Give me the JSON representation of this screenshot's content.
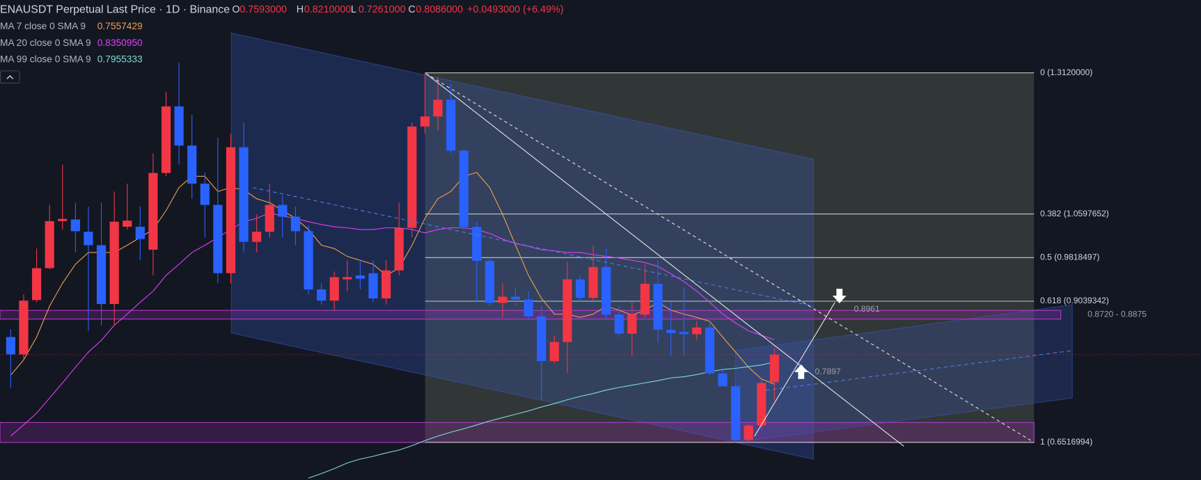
{
  "header": {
    "symbol": "ENAUSDT Perpetual Last Price · 1D · Binance",
    "ohlc_labels": [
      "O",
      "H",
      "L",
      "C"
    ],
    "ohlc_values": [
      "0.7593000",
      "0.8210000",
      "0.7261000",
      "0.8086000"
    ],
    "change": "+0.0493000 (+6.49%)"
  },
  "chart_data": {
    "type": "candlestick",
    "up_color": "#f23645",
    "down_color": "#2962ff",
    "ylim": [
      0.5847,
      1.4419
    ],
    "open": [
      0.84,
      0.809,
      0.906,
      0.963,
      1.047,
      1.05,
      1.028,
      1.004,
      0.899,
      1.037,
      1.037,
      0.996,
      1.133,
      1.252,
      1.182,
      1.114,
      1.076,
      0.954,
      1.179,
      1.01,
      1.028,
      1.076,
      1.055,
      1.029,
      0.925,
      0.905,
      0.943,
      0.95,
      0.954,
      0.909,
      0.959,
      1.035,
      1.216,
      1.234,
      1.264,
      1.173,
      1.037,
      0.976,
      0.901,
      0.912,
      0.907,
      0.877,
      0.797,
      0.831,
      0.943,
      0.91,
      0.965,
      0.88,
      0.846,
      0.88,
      0.935,
      0.853,
      0.849,
      0.845,
      0.857,
      0.775,
      0.752,
      0.656,
      0.682,
      0.7593
    ],
    "high": [
      0.854,
      0.916,
      0.998,
      1.076,
      1.148,
      1.08,
      1.073,
      1.08,
      1.1,
      1.114,
      1.073,
      1.168,
      1.278,
      1.33,
      1.237,
      1.134,
      1.196,
      1.203,
      1.223,
      1.059,
      1.114,
      1.093,
      1.073,
      1.039,
      0.936,
      0.957,
      0.977,
      0.977,
      0.977,
      0.977,
      1.08,
      1.223,
      1.312,
      1.305,
      1.292,
      1.175,
      1.046,
      0.984,
      0.936,
      0.929,
      0.922,
      0.895,
      0.843,
      0.974,
      0.95,
      1.004,
      0.998,
      0.895,
      0.902,
      0.97,
      0.977,
      0.902,
      0.929,
      0.868,
      0.868,
      0.786,
      0.758,
      0.686,
      0.765,
      0.821
    ],
    "low": [
      0.749,
      0.799,
      0.902,
      0.961,
      1.032,
      0.991,
      0.851,
      0.861,
      0.861,
      1.032,
      0.977,
      0.95,
      1.127,
      1.148,
      1.087,
      1.018,
      0.936,
      0.936,
      0.991,
      0.991,
      1.018,
      1.018,
      1.004,
      0.916,
      0.898,
      0.888,
      0.922,
      0.925,
      0.902,
      0.898,
      0.95,
      1.018,
      1.203,
      1.209,
      1.168,
      1.032,
      0.902,
      0.895,
      0.875,
      0.895,
      0.87,
      0.727,
      0.793,
      0.776,
      0.902,
      0.902,
      0.87,
      0.84,
      0.806,
      0.875,
      0.83,
      0.806,
      0.806,
      0.834,
      0.772,
      0.752,
      0.6517,
      0.652,
      0.676,
      0.7261
    ],
    "close": [
      0.809,
      0.905,
      0.963,
      1.047,
      1.051,
      1.029,
      1.004,
      0.899,
      1.046,
      1.048,
      1.015,
      1.133,
      1.252,
      1.182,
      1.114,
      1.076,
      0.954,
      1.179,
      1.01,
      1.028,
      1.076,
      1.055,
      1.029,
      0.925,
      0.905,
      0.947,
      0.947,
      0.944,
      0.909,
      0.959,
      1.035,
      1.216,
      1.234,
      1.264,
      1.173,
      1.037,
      0.976,
      0.901,
      0.912,
      0.907,
      0.877,
      0.797,
      0.831,
      0.943,
      0.91,
      0.965,
      0.88,
      0.846,
      0.88,
      0.935,
      0.853,
      0.847,
      0.845,
      0.857,
      0.775,
      0.752,
      0.656,
      0.682,
      0.758,
      0.8086
    ],
    "series": [
      {
        "name": "MA 7 close 0 SMA 9",
        "color": "#f0a04b",
        "values": [
          0.772,
          0.799,
          0.84,
          0.895,
          0.936,
          0.97,
          0.991,
          0.991,
          0.991,
          1.004,
          1.018,
          1.032,
          1.066,
          1.107,
          1.127,
          1.127,
          1.1,
          1.107,
          1.103,
          1.087,
          1.08,
          1.066,
          1.052,
          1.032,
          1.004,
          0.998,
          0.984,
          0.977,
          0.97,
          0.95,
          0.963,
          1.004,
          1.052,
          1.087,
          1.1,
          1.127,
          1.134,
          1.107,
          1.059,
          1.004,
          0.95,
          0.909,
          0.881,
          0.881,
          0.875,
          0.881,
          0.895,
          0.888,
          0.879,
          0.888,
          0.902,
          0.888,
          0.881,
          0.875,
          0.868,
          0.84,
          0.813,
          0.786,
          0.765,
          0.7557429
        ]
      },
      {
        "name": "MA 20 close 0 SMA 9",
        "color": "#e040fb",
        "values": [
          0.663,
          0.683,
          0.704,
          0.731,
          0.758,
          0.786,
          0.813,
          0.834,
          0.861,
          0.881,
          0.902,
          0.922,
          0.95,
          0.97,
          0.991,
          1.004,
          1.018,
          1.032,
          1.046,
          1.052,
          1.062,
          1.056,
          1.052,
          1.046,
          1.041,
          1.037,
          1.035,
          1.032,
          1.032,
          1.035,
          1.035,
          1.032,
          1.026,
          1.032,
          1.035,
          1.035,
          1.032,
          1.025,
          1.015,
          1.007,
          1.002,
          0.996,
          0.994,
          0.991,
          0.991,
          0.987,
          0.984,
          0.981,
          0.977,
          0.973,
          0.966,
          0.953,
          0.939,
          0.922,
          0.902,
          0.881,
          0.865,
          0.851,
          0.843,
          0.835095
        ],
        "value_labels": [
          null,
          null,
          null,
          null,
          null,
          null,
          null,
          null,
          null,
          null,
          null,
          null,
          null,
          null,
          null,
          null,
          null,
          null,
          null,
          null,
          null,
          null,
          null,
          null,
          null,
          null,
          null,
          null,
          null,
          null,
          null,
          null,
          null,
          null,
          null,
          null,
          null,
          null,
          null,
          null,
          null,
          null,
          null,
          null,
          null,
          null,
          null,
          null,
          null,
          null,
          null,
          null,
          null,
          null,
          null,
          null,
          null,
          null,
          null,
          "0.8350950"
        ]
      },
      {
        "name": "MA 99 close 0 SMA 9",
        "color": "#7fdcd8",
        "values": [
          null,
          null,
          null,
          null,
          null,
          null,
          null,
          null,
          null,
          null,
          null,
          null,
          null,
          null,
          null,
          null,
          null,
          null,
          null,
          null,
          null,
          null,
          null,
          0.588,
          0.596,
          0.605,
          0.615,
          0.622,
          0.627,
          0.633,
          0.638,
          0.646,
          0.655,
          0.663,
          0.67,
          0.676,
          0.683,
          0.69,
          0.696,
          0.702,
          0.708,
          0.715,
          0.721,
          0.728,
          0.734,
          0.739,
          0.745,
          0.75,
          0.754,
          0.758,
          0.762,
          0.767,
          0.769,
          0.773,
          0.778,
          0.782,
          0.784,
          0.787,
          0.79,
          0.7955333
        ]
      }
    ],
    "fib_levels": [
      {
        "value": 1.312,
        "label": "0 (1.3120000)"
      },
      {
        "value": 1.0597652,
        "label": "0.382 (1.0597652)"
      },
      {
        "value": 0.9818497,
        "label": "0.5 (0.9818497)"
      },
      {
        "value": 0.9039342,
        "label": "0.618 (0.9039342)"
      },
      {
        "value": 0.6516994,
        "label": "1 (0.6516994)"
      }
    ],
    "zones": [
      {
        "low": 0.872,
        "high": 0.8875,
        "label": "0.8720 - 0.8875"
      },
      {
        "low": 0.6517,
        "high": 0.6873
      }
    ],
    "annotations": [
      0.8961,
      0.7897
    ]
  }
}
